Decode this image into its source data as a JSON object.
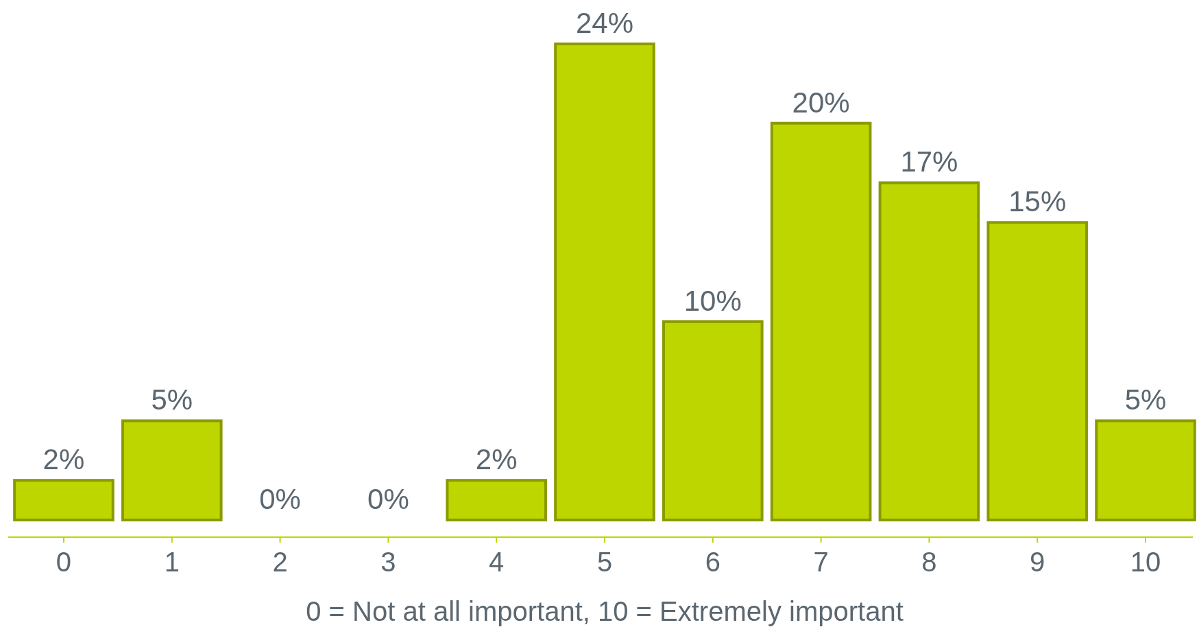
{
  "chart_data": {
    "type": "bar",
    "xlabel": "0 = Not at all important, 10 = Extremely important",
    "categories": [
      "0",
      "1",
      "2",
      "3",
      "4",
      "5",
      "6",
      "7",
      "8",
      "9",
      "10"
    ],
    "values": [
      2,
      5,
      0,
      0,
      2,
      24,
      10,
      20,
      17,
      15,
      5
    ],
    "color": "#bed600",
    "value_labels": [
      "2%",
      "5%",
      "0%",
      "0%",
      "2%",
      "24%",
      "10%",
      "20%",
      "17%",
      "15%",
      "5%"
    ]
  }
}
